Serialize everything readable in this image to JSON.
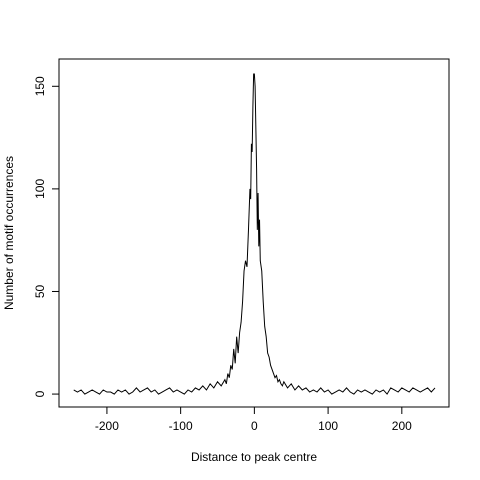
{
  "chart_data": {
    "type": "line",
    "x_label": "Distance to peak centre",
    "y_label": "Number of motif occurrences",
    "x": [
      -245,
      -240,
      -235,
      -230,
      -225,
      -220,
      -215,
      -210,
      -205,
      -200,
      -195,
      -190,
      -185,
      -180,
      -175,
      -170,
      -165,
      -160,
      -155,
      -150,
      -145,
      -140,
      -135,
      -130,
      -125,
      -120,
      -115,
      -110,
      -105,
      -100,
      -95,
      -90,
      -85,
      -80,
      -75,
      -70,
      -65,
      -60,
      -55,
      -50,
      -45,
      -40,
      -38,
      -36,
      -34,
      -32,
      -30,
      -28,
      -26,
      -24,
      -22,
      -20,
      -18,
      -16,
      -14,
      -12,
      -10,
      -8,
      -6,
      -5,
      -4,
      -3,
      -2,
      -1,
      0,
      1,
      2,
      3,
      4,
      5,
      6,
      7,
      8,
      10,
      12,
      14,
      16,
      18,
      20,
      22,
      24,
      26,
      28,
      30,
      32,
      34,
      36,
      38,
      40,
      45,
      50,
      55,
      60,
      65,
      70,
      75,
      80,
      85,
      90,
      95,
      100,
      105,
      110,
      115,
      120,
      125,
      130,
      135,
      140,
      145,
      150,
      155,
      160,
      165,
      170,
      175,
      180,
      185,
      190,
      195,
      200,
      205,
      210,
      215,
      220,
      225,
      230,
      235,
      240,
      245
    ],
    "series": [
      {
        "color": "#000000",
        "values": [
          2,
          1,
          2,
          0,
          1,
          2,
          1,
          0,
          2,
          1,
          1,
          0,
          2,
          1,
          2,
          0,
          1,
          3,
          1,
          2,
          3,
          1,
          2,
          0,
          1,
          2,
          3,
          1,
          2,
          1,
          0,
          2,
          1,
          3,
          2,
          4,
          2,
          5,
          3,
          6,
          4,
          7,
          5,
          10,
          8,
          14,
          12,
          22,
          15,
          28,
          20,
          30,
          35,
          45,
          60,
          65,
          62,
          80,
          100,
          95,
          122,
          118,
          140,
          156,
          156,
          150,
          130,
          110,
          80,
          98,
          72,
          85,
          65,
          60,
          45,
          33,
          28,
          20,
          18,
          14,
          12,
          10,
          8,
          9,
          6,
          7,
          5,
          4,
          6,
          3,
          5,
          2,
          4,
          2,
          3,
          1,
          2,
          1,
          3,
          1,
          2,
          0,
          1,
          2,
          1,
          3,
          1,
          0,
          2,
          1,
          2,
          1,
          0,
          2,
          1,
          2,
          0,
          3,
          2,
          1,
          3,
          2,
          1,
          3,
          2,
          1,
          2,
          3,
          1,
          3
        ]
      }
    ],
    "xlim": [
      -265,
      264
    ],
    "ylim": [
      -6.3,
      163.3
    ],
    "xticks": [
      -200,
      -100,
      0,
      100,
      200
    ],
    "yticks": [
      0,
      50,
      100,
      150
    ]
  }
}
